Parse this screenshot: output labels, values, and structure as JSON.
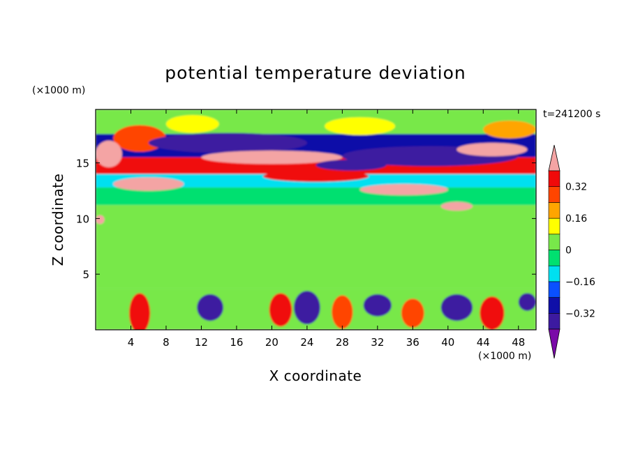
{
  "chart_data": {
    "type": "heatmap",
    "title": "potential temperature deviation",
    "xlabel": "X coordinate",
    "ylabel": "Z coordinate",
    "x_unit": "(×1000 m)",
    "z_unit": "(×1000 m)",
    "time_label": "t=241200 s",
    "xlim": [
      0,
      50
    ],
    "ylim": [
      0,
      19.8
    ],
    "x_ticks": [
      4,
      8,
      12,
      16,
      20,
      24,
      28,
      32,
      36,
      40,
      44,
      48
    ],
    "y_ticks": [
      5,
      10,
      15
    ],
    "colorbar": {
      "levels": [
        -0.4,
        -0.32,
        -0.24,
        -0.16,
        -0.08,
        0,
        0.08,
        0.16,
        0.24,
        0.32,
        0.4
      ],
      "tick_values": [
        -0.32,
        -0.16,
        0,
        0.16,
        0.32
      ],
      "tick_labels": [
        "−0.32",
        "−0.16",
        "0",
        "0.16",
        "0.32"
      ],
      "colors": [
        "#7a0aa8",
        "#3c1aa0",
        "#0f0fa8",
        "#0a50ff",
        "#00e0f0",
        "#00e070",
        "#78e84a",
        "#ffff00",
        "#ffa500",
        "#ff4500",
        "#f00a0a",
        "#f4a4a4"
      ],
      "extend": "both"
    },
    "field_bands": [
      {
        "z_range": [
          17.6,
          19.8
        ],
        "value": 0.02
      },
      {
        "z_range": [
          15.5,
          17.6
        ],
        "value": -0.28
      },
      {
        "z_range": [
          14.0,
          15.5
        ],
        "value": 0.36
      },
      {
        "z_range": [
          12.8,
          14.0
        ],
        "value": -0.14
      },
      {
        "z_range": [
          11.2,
          12.8
        ],
        "value": -0.08
      },
      {
        "z_range": [
          3.7,
          11.2
        ],
        "value": 0.04
      },
      {
        "z_range": [
          0,
          3.7
        ],
        "value": 0.0
      }
    ],
    "blobs": [
      {
        "x": 5,
        "z": 17.2,
        "rx": 3,
        "rz": 1.2,
        "value": 0.3
      },
      {
        "x": 15,
        "z": 16.8,
        "rx": 9,
        "rz": 0.9,
        "value": -0.36
      },
      {
        "x": 20,
        "z": 15.5,
        "rx": 8,
        "rz": 0.6,
        "value": 0.44
      },
      {
        "x": 38,
        "z": 15.6,
        "rx": 10,
        "rz": 0.9,
        "value": -0.34
      },
      {
        "x": 45,
        "z": 16.2,
        "rx": 4,
        "rz": 0.6,
        "value": 0.42
      },
      {
        "x": 1.5,
        "z": 15.8,
        "rx": 1.5,
        "rz": 1.2,
        "value": 0.44
      },
      {
        "x": 6,
        "z": 13.1,
        "rx": 4,
        "rz": 0.6,
        "value": 0.44
      },
      {
        "x": 25,
        "z": 13.8,
        "rx": 6,
        "rz": 0.5,
        "value": 0.36
      },
      {
        "x": 35,
        "z": 12.6,
        "rx": 5,
        "rz": 0.5,
        "value": 0.44
      },
      {
        "x": 41,
        "z": 11.1,
        "rx": 1.8,
        "rz": 0.4,
        "value": 0.44
      },
      {
        "x": 29,
        "z": 14.8,
        "rx": 4,
        "rz": 0.5,
        "value": -0.38
      },
      {
        "x": 30,
        "z": 18.3,
        "rx": 4,
        "rz": 0.8,
        "value": 0.14
      },
      {
        "x": 11,
        "z": 18.5,
        "rx": 3,
        "rz": 0.8,
        "value": 0.14
      },
      {
        "x": 47,
        "z": 18.0,
        "rx": 3,
        "rz": 0.8,
        "value": 0.18
      },
      {
        "x": 0.5,
        "z": 9.9,
        "rx": 0.5,
        "rz": 0.4,
        "value": 0.44
      },
      {
        "x": 5,
        "z": 1.5,
        "rx": 1.2,
        "rz": 1.8,
        "value": 0.32
      },
      {
        "x": 13,
        "z": 2.0,
        "rx": 1.5,
        "rz": 1.2,
        "value": -0.36
      },
      {
        "x": 21,
        "z": 1.8,
        "rx": 1.3,
        "rz": 1.5,
        "value": 0.36
      },
      {
        "x": 24,
        "z": 2.0,
        "rx": 1.5,
        "rz": 1.5,
        "value": -0.38
      },
      {
        "x": 28,
        "z": 1.6,
        "rx": 1.2,
        "rz": 1.5,
        "value": 0.3
      },
      {
        "x": 32,
        "z": 2.2,
        "rx": 1.6,
        "rz": 1.0,
        "value": -0.34
      },
      {
        "x": 36,
        "z": 1.5,
        "rx": 1.3,
        "rz": 1.3,
        "value": 0.3
      },
      {
        "x": 41,
        "z": 2.0,
        "rx": 1.8,
        "rz": 1.2,
        "value": -0.36
      },
      {
        "x": 45,
        "z": 1.5,
        "rx": 1.4,
        "rz": 1.5,
        "value": 0.36
      },
      {
        "x": 49,
        "z": 2.5,
        "rx": 1.0,
        "rz": 0.8,
        "value": -0.34
      }
    ]
  }
}
